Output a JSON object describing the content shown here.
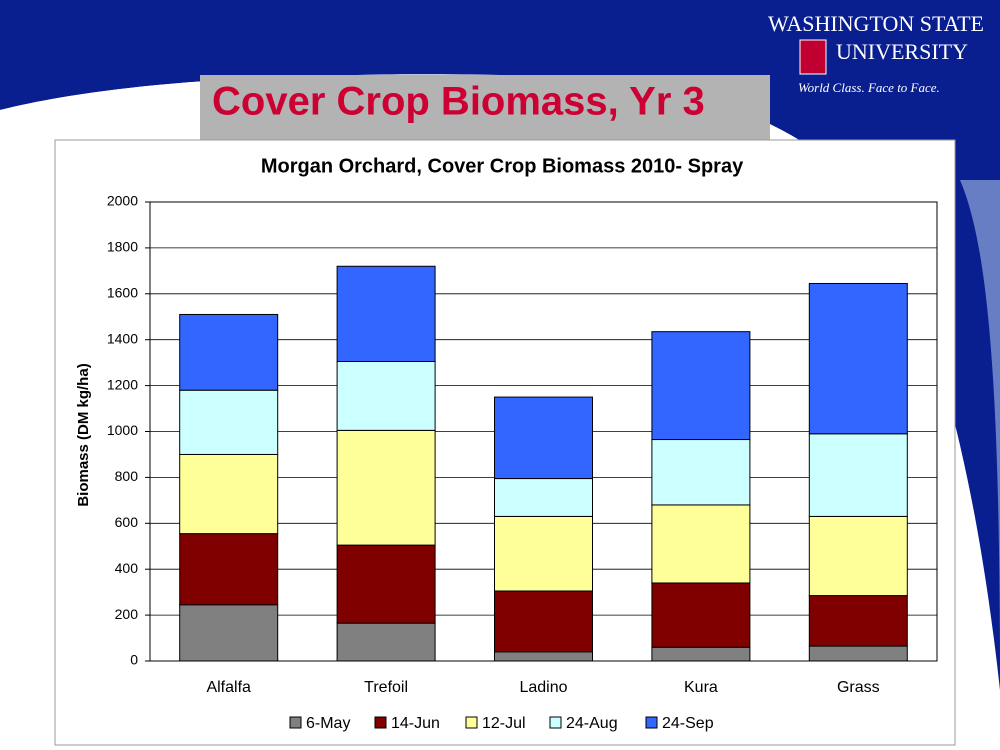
{
  "slide": {
    "title": "Cover Crop Biomass, Yr 3",
    "logo_line1": "WASHINGTON STATE",
    "logo_line2": "UNIVERSITY",
    "tagline": "World Class. Face to Face."
  },
  "chart_data": {
    "type": "stacked_bar",
    "title": "Morgan Orchard, Cover Crop Biomass 2010- Spray",
    "y_label": "Biomass (DM kg/ha)",
    "categories": [
      "Alfalfa",
      "Trefoil",
      "Ladino",
      "Kura",
      "Grass"
    ],
    "series": [
      {
        "name": "6-May",
        "color": "#808080",
        "values": [
          245,
          165,
          40,
          60,
          65
        ]
      },
      {
        "name": "14-Jun",
        "color": "#800000",
        "values": [
          310,
          340,
          265,
          280,
          220
        ]
      },
      {
        "name": "12-Jul",
        "color": "#ffff99",
        "values": [
          345,
          500,
          325,
          340,
          345
        ]
      },
      {
        "name": "24-Aug",
        "color": "#ccffff",
        "values": [
          280,
          300,
          165,
          285,
          360
        ]
      },
      {
        "name": "24-Sep",
        "color": "#3366ff",
        "values": [
          330,
          415,
          355,
          470,
          655
        ]
      }
    ],
    "ylim": [
      0,
      2000
    ],
    "yticks": [
      0,
      200,
      400,
      600,
      800,
      1000,
      1200,
      1400,
      1600,
      1800,
      2000
    ],
    "grid": true,
    "legend": "bottom"
  }
}
